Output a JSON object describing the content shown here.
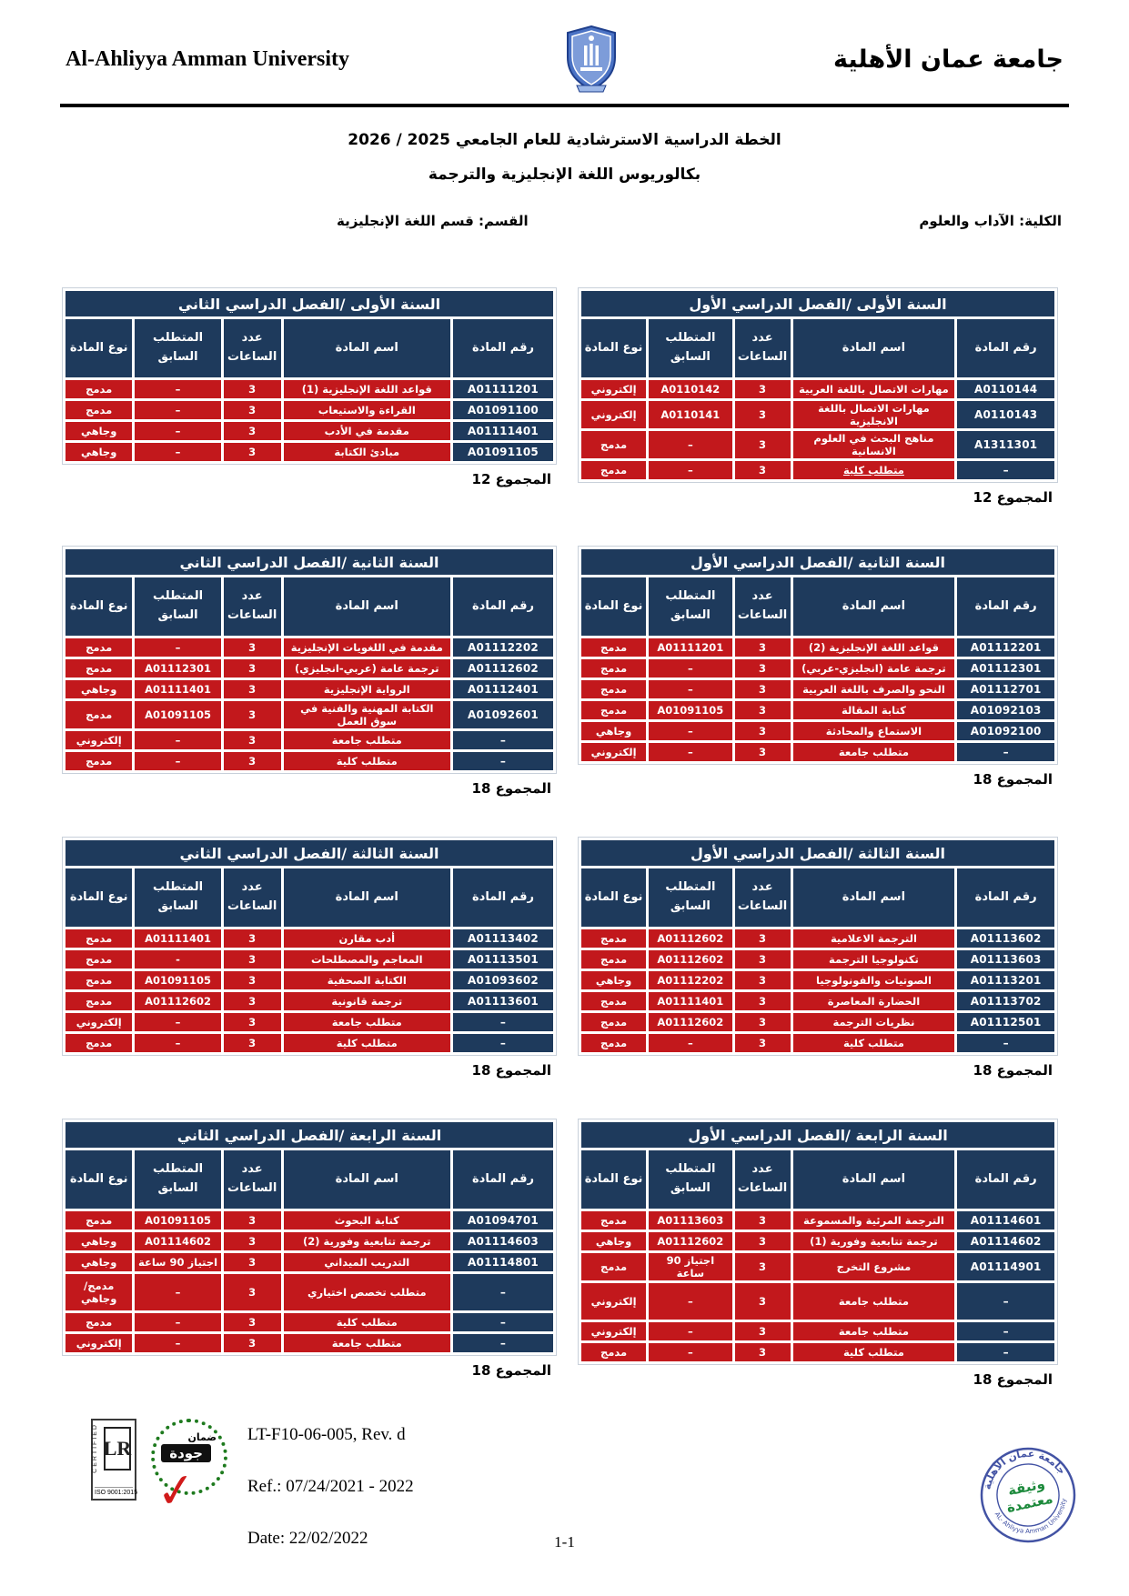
{
  "header": {
    "en_title": "Al-Ahliyya Amman University",
    "ar_title": "جامعة عمان الأهلية"
  },
  "titles": {
    "plan": "الخطة الدراسية الاسترشادية للعام الجامعي 2025 / 2026",
    "program": "بكالوريوس اللغة الإنجليزية والترجمة"
  },
  "info": {
    "faculty": "الكلية: الآداب والعلوم",
    "department": "القسم: قسم اللغة الإنجليزية"
  },
  "columns": [
    "رقم المادة",
    "اسم المادة",
    "عدد الساعات",
    "المتطلب السابق",
    "نوع المادة"
  ],
  "colors": {
    "navy": "#1e3a5c",
    "red": "#c2181c"
  },
  "tables": [
    {
      "title": "السنة الأولى /الفصل الدراسي الأول",
      "total": "المجموع 12",
      "rows": [
        {
          "code": "A0110144",
          "name": "مهارات الاتصال باللغة العربية",
          "hours": "3",
          "prereq": "A0110142",
          "type": "إلكتروني"
        },
        {
          "code": "A0110143",
          "name": "مهارات الاتصال باللغة الانجليزية",
          "hours": "3",
          "prereq": "A0110141",
          "type": "إلكتروني"
        },
        {
          "code": "A1311301",
          "name": "مناهج البحث في العلوم الانسانية",
          "hours": "3",
          "prereq": "–",
          "type": "مدمج"
        },
        {
          "code": "–",
          "name": "متطلب كلية",
          "hours": "3",
          "prereq": "–",
          "type": "مدمج",
          "u": true
        }
      ]
    },
    {
      "title": "السنة الأولى /الفصل الدراسي الثاني",
      "total": "المجموع 12",
      "rows": [
        {
          "code": "A01111201",
          "name": "قواعد اللغة الإنجليزية (1)",
          "hours": "3",
          "prereq": "–",
          "type": "مدمج"
        },
        {
          "code": "A01091100",
          "name": "القراءة والاستيعاب",
          "hours": "3",
          "prereq": "–",
          "type": "مدمج"
        },
        {
          "code": "A01111401",
          "name": "مقدمة في الأدب",
          "hours": "3",
          "prereq": "–",
          "type": "وجاهي"
        },
        {
          "code": "A01091105",
          "name": "مبادئ الكتابة",
          "hours": "3",
          "prereq": "–",
          "type": "وجاهي"
        }
      ]
    },
    {
      "title": "السنة الثانية /الفصل الدراسي الأول",
      "total": "المجموع 18",
      "rows": [
        {
          "code": "A01112201",
          "name": "قواعد اللغة الإنجليزية (2)",
          "hours": "3",
          "prereq": "A01111201",
          "type": "مدمج"
        },
        {
          "code": "A01112301",
          "name": "ترجمة عامة (انجليزي-عربي)",
          "hours": "3",
          "prereq": "–",
          "type": "مدمج"
        },
        {
          "code": "A01112701",
          "name": "النحو والصرف باللغة العربية",
          "hours": "3",
          "prereq": "–",
          "type": "مدمج"
        },
        {
          "code": "A01092103",
          "name": "كتابة المقالة",
          "hours": "3",
          "prereq": "A01091105",
          "type": "مدمج"
        },
        {
          "code": "A01092100",
          "name": "الاستماع والمحادثة",
          "hours": "3",
          "prereq": "–",
          "type": "وجاهي"
        },
        {
          "code": "–",
          "name": "متطلب جامعة",
          "hours": "3",
          "prereq": "–",
          "type": "إلكتروني"
        }
      ]
    },
    {
      "title": "السنة الثانية /الفصل الدراسي الثاني",
      "total": "المجموع 18",
      "rows": [
        {
          "code": "A01112202",
          "name": "مقدمة في اللغويات الإنجليزية",
          "hours": "3",
          "prereq": "–",
          "type": "مدمج"
        },
        {
          "code": "A01112602",
          "name": "ترجمة عامة (عربي-انجليزي)",
          "hours": "3",
          "prereq": "A01112301",
          "type": "مدمج"
        },
        {
          "code": "A01112401",
          "name": "الرواية الإنجليزية",
          "hours": "3",
          "prereq": "A01111401",
          "type": "وجاهي"
        },
        {
          "code": "A01092601",
          "name": "الكتابة المهنية والفنية في سوق العمل",
          "hours": "3",
          "prereq": "A01091105",
          "type": "مدمج"
        },
        {
          "code": "–",
          "name": "متطلب جامعة",
          "hours": "3",
          "prereq": "–",
          "type": "إلكتروني"
        },
        {
          "code": "–",
          "name": "متطلب كلية",
          "hours": "3",
          "prereq": "–",
          "type": "مدمج"
        }
      ]
    },
    {
      "title": "السنة الثالثة /الفصل الدراسي الأول",
      "total": "المجموع 18",
      "rows": [
        {
          "code": "A01113602",
          "name": "الترجمة الاعلامية",
          "hours": "3",
          "prereq": "A01112602",
          "type": "مدمج"
        },
        {
          "code": "A01113603",
          "name": "تكنولوجيا الترجمة",
          "hours": "3",
          "prereq": "A01112602",
          "type": "مدمج"
        },
        {
          "code": "A01113201",
          "name": "الصوتيات والفونولوجيا",
          "hours": "3",
          "prereq": "A01112202",
          "type": "وجاهي"
        },
        {
          "code": "A01113702",
          "name": "الحضارة المعاصرة",
          "hours": "3",
          "prereq": "A01111401",
          "type": "مدمج"
        },
        {
          "code": "A01112501",
          "name": "نظريات الترجمة",
          "hours": "3",
          "prereq": "A01112602",
          "type": "مدمج"
        },
        {
          "code": "–",
          "name": "متطلب كلية",
          "hours": "3",
          "prereq": "–",
          "type": "مدمج"
        }
      ]
    },
    {
      "title": "السنة الثالثة /الفصل الدراسي الثاني",
      "total": "المجموع 18",
      "rows": [
        {
          "code": "A01113402",
          "name": "أدب مقارن",
          "hours": "3",
          "prereq": "A01111401",
          "type": "مدمج"
        },
        {
          "code": "A01113501",
          "name": "المعاجم والمصطلحات",
          "hours": "3",
          "prereq": "-",
          "type": "مدمج"
        },
        {
          "code": "A01093602",
          "name": "الكتابة الصحفية",
          "hours": "3",
          "prereq": "A01091105",
          "type": "مدمج"
        },
        {
          "code": "A01113601",
          "name": "ترجمة قانونية",
          "hours": "3",
          "prereq": "A01112602",
          "type": "مدمج"
        },
        {
          "code": "–",
          "name": "متطلب جامعة",
          "hours": "3",
          "prereq": "–",
          "type": "إلكتروني"
        },
        {
          "code": "–",
          "name": "متطلب كلية",
          "hours": "3",
          "prereq": "–",
          "type": "مدمج"
        }
      ]
    },
    {
      "title": "السنة الرابعة /الفصل الدراسي الأول",
      "total": "المجموع 18",
      "rows": [
        {
          "code": "A01114601",
          "name": "الترجمة المرئية والمسموعة",
          "hours": "3",
          "prereq": "A01113603",
          "type": "مدمج"
        },
        {
          "code": "A01114602",
          "name": "ترجمة تتابعية وفورية (1)",
          "hours": "3",
          "prereq": "A01112602",
          "type": "وجاهي"
        },
        {
          "code": "A01114901",
          "name": "مشروع التخرج",
          "hours": "3",
          "prereq": "اجتياز 90 ساعة",
          "type": "مدمج"
        },
        {
          "code": "–",
          "name": "متطلب جامعة",
          "hours": "3",
          "prereq": "–",
          "type": "إلكتروني",
          "tall": true
        },
        {
          "code": "–",
          "name": "متطلب جامعة",
          "hours": "3",
          "prereq": "–",
          "type": "إلكتروني"
        },
        {
          "code": "–",
          "name": "متطلب كلية",
          "hours": "3",
          "prereq": "–",
          "type": "مدمج"
        }
      ]
    },
    {
      "title": "السنة الرابعة /الفصل الدراسي الثاني",
      "total": "المجموع 18",
      "rows": [
        {
          "code": "A01094701",
          "name": "كتابة البحوث",
          "hours": "3",
          "prereq": "A01091105",
          "type": "مدمج"
        },
        {
          "code": "A01114603",
          "name": "ترجمة تتابعية وفورية (2)",
          "hours": "3",
          "prereq": "A01114602",
          "type": "وجاهي"
        },
        {
          "code": "A01114801",
          "name": "التدريب الميداني",
          "hours": "3",
          "prereq": "اجتياز 90 ساعة",
          "type": "وجاهي"
        },
        {
          "code": "–",
          "name": "متطلب تخصص اختياري",
          "hours": "3",
          "prereq": "–",
          "type": "مدمج/\nوجاهي",
          "tall": true
        },
        {
          "code": "–",
          "name": "متطلب كلية",
          "hours": "3",
          "prereq": "–",
          "type": "مدمج"
        },
        {
          "code": "–",
          "name": "متطلب جامعة",
          "hours": "3",
          "prereq": "–",
          "type": "إلكتروني"
        }
      ]
    }
  ],
  "footer": {
    "doc_code": "LT-F10-06-005, Rev. d",
    "ref": "Ref.: 07/24/2021 - 2022",
    "date": "Date: 22/02/2022",
    "page": "1-1",
    "lr_badge": {
      "certified": "CERTIFIED",
      "monogram": "LR",
      "iso": "ISO 9001:2015"
    },
    "quality_badge": {
      "top": "ضمان",
      "main": "جودة"
    },
    "stamp": {
      "arc_top": "جامعة عمان الأهلية",
      "arc_bottom": "AL- Ahliyya Amman University",
      "center_line1": "وثيقة",
      "center_line2": "معتمدة"
    }
  }
}
